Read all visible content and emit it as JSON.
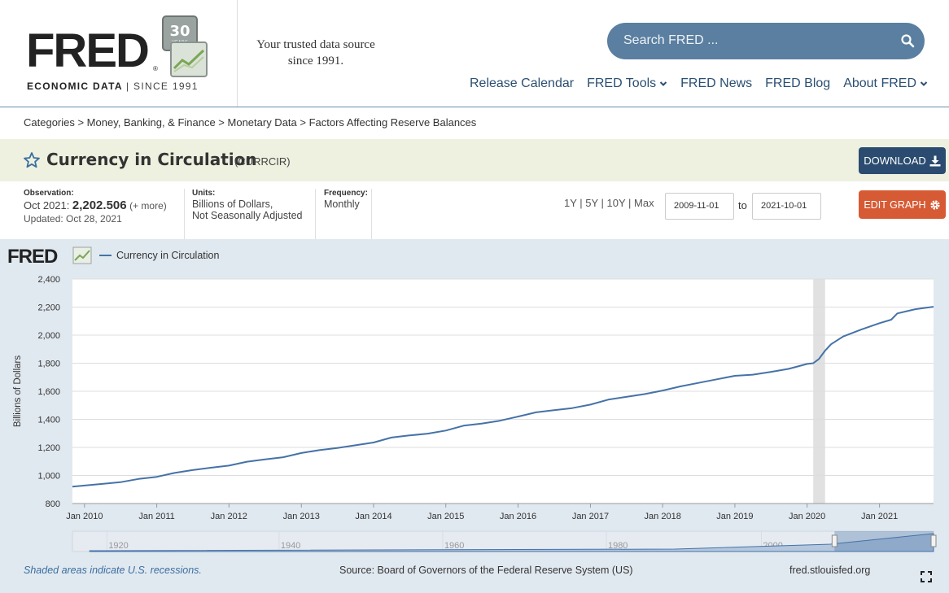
{
  "header": {
    "logo_text": "FRED",
    "logo_badge": "30 YEARS",
    "logo_sub_left": "ECONOMIC DATA",
    "logo_sub_right": "SINCE 1991",
    "tagline_line1": "Your trusted data source",
    "tagline_line2": "since 1991.",
    "search_placeholder": "Search FRED ...",
    "nav": [
      {
        "label": "Release Calendar"
      },
      {
        "label": "FRED Tools"
      },
      {
        "label": "FRED News"
      },
      {
        "label": "FRED Blog"
      },
      {
        "label": "About FRED"
      }
    ]
  },
  "breadcrumb": "Categories > Money, Banking, & Finance > Monetary Data > Factors Affecting Reserve Balances",
  "series": {
    "title": "Currency in Circulation",
    "code": "(CURRCIR)",
    "download_label": "DOWNLOAD"
  },
  "meta": {
    "observation_label": "Observation:",
    "obs_date": "Oct 2021:",
    "obs_value": "2,202.506",
    "obs_more": "(+ more)",
    "updated": "Updated: Oct 28, 2021",
    "units_label": "Units:",
    "units_line1": "Billions of Dollars,",
    "units_line2": "Not Seasonally Adjusted",
    "freq_label": "Frequency:",
    "freq_value": "Monthly",
    "ranges": "1Y | 5Y | 10Y | Max",
    "date_from": "2009-11-01",
    "to_label": "to",
    "date_to": "2021-10-01",
    "edit_label": "EDIT GRAPH"
  },
  "graph": {
    "logo_text": "FRED",
    "recession_note": "Shaded areas indicate U.S. recessions.",
    "source": "Source: Board of Governors of the Federal Reserve System (US)",
    "site": "fred.stlouisfed.org"
  },
  "colors": {
    "line": "#4572a7",
    "recession": "#e1e1e1",
    "header_nav": "#2b4f73",
    "download": "#2b4c70",
    "edit": "#d65b35",
    "title_band": "#eef1df",
    "graph_bg": "#e1e9f0"
  },
  "chart_data": {
    "type": "line",
    "ylabel": "Billions of Dollars",
    "ylim": [
      800,
      2400
    ],
    "yticks": [
      800,
      1000,
      1200,
      1400,
      1600,
      1800,
      2000,
      2200,
      2400
    ],
    "ytick_labels": [
      "800",
      "1,000",
      "1,200",
      "1,400",
      "1,600",
      "1,800",
      "2,000",
      "2,200",
      "2,400"
    ],
    "xlim": [
      "2009-11-01",
      "2021-10-01"
    ],
    "xtick_labels": [
      "Jan 2010",
      "Jan 2011",
      "Jan 2012",
      "Jan 2013",
      "Jan 2014",
      "Jan 2015",
      "Jan 2016",
      "Jan 2017",
      "Jan 2018",
      "Jan 2019",
      "Jan 2020",
      "Jan 2021"
    ],
    "xtick_dates": [
      "2010-01-01",
      "2011-01-01",
      "2012-01-01",
      "2013-01-01",
      "2014-01-01",
      "2015-01-01",
      "2016-01-01",
      "2017-01-01",
      "2018-01-01",
      "2019-01-01",
      "2020-01-01",
      "2021-01-01"
    ],
    "grid": true,
    "legend": "top-left",
    "recessions": [
      [
        "2020-02-01",
        "2020-04-01"
      ]
    ],
    "navigator_labels": [
      "1920",
      "1940",
      "1960",
      "1980",
      "2000"
    ],
    "series": [
      {
        "name": "Currency in Circulation",
        "x": [
          "2009-11-01",
          "2010-01-01",
          "2010-04-01",
          "2010-07-01",
          "2010-10-01",
          "2011-01-01",
          "2011-04-01",
          "2011-07-01",
          "2011-10-01",
          "2012-01-01",
          "2012-04-01",
          "2012-07-01",
          "2012-10-01",
          "2013-01-01",
          "2013-04-01",
          "2013-07-01",
          "2013-10-01",
          "2014-01-01",
          "2014-04-01",
          "2014-07-01",
          "2014-10-01",
          "2015-01-01",
          "2015-04-01",
          "2015-07-01",
          "2015-10-01",
          "2016-01-01",
          "2016-04-01",
          "2016-07-01",
          "2016-10-01",
          "2017-01-01",
          "2017-04-01",
          "2017-07-01",
          "2017-10-01",
          "2018-01-01",
          "2018-04-01",
          "2018-07-01",
          "2018-10-01",
          "2019-01-01",
          "2019-04-01",
          "2019-07-01",
          "2019-10-01",
          "2020-01-01",
          "2020-02-01",
          "2020-03-01",
          "2020-04-01",
          "2020-05-01",
          "2020-07-01",
          "2020-10-01",
          "2021-01-01",
          "2021-03-01",
          "2021-04-01",
          "2021-07-01",
          "2021-10-01"
        ],
        "values": [
          920,
          928,
          940,
          952,
          975,
          990,
          1018,
          1038,
          1055,
          1070,
          1098,
          1115,
          1130,
          1160,
          1180,
          1196,
          1215,
          1235,
          1270,
          1285,
          1298,
          1320,
          1355,
          1370,
          1390,
          1420,
          1450,
          1465,
          1480,
          1505,
          1540,
          1560,
          1580,
          1605,
          1635,
          1660,
          1685,
          1710,
          1718,
          1738,
          1760,
          1795,
          1800,
          1830,
          1890,
          1935,
          1990,
          2040,
          2085,
          2110,
          2155,
          2185,
          2202.506
        ]
      }
    ]
  }
}
